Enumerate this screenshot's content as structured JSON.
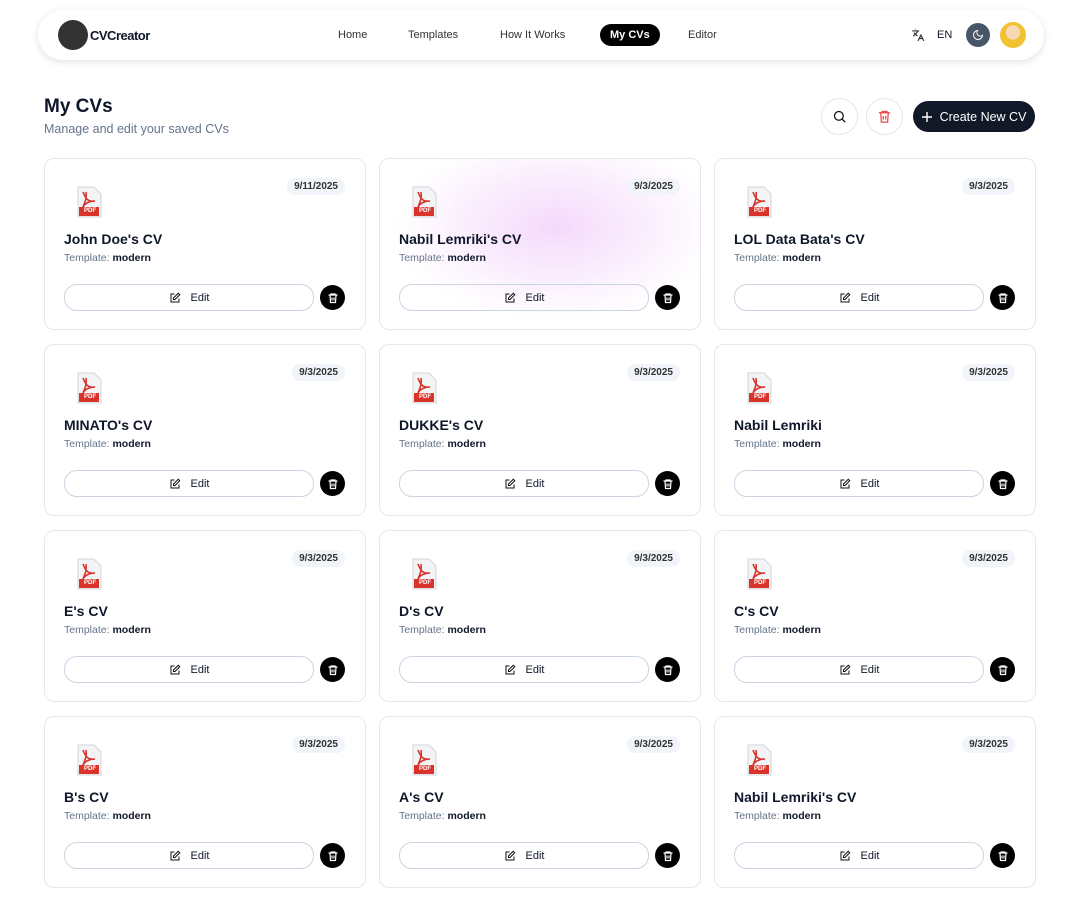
{
  "nav": {
    "logo": "CVCreator",
    "links": [
      "Home",
      "Templates",
      "How It Works",
      "My CVs",
      "Editor"
    ],
    "active_link": 3,
    "language": "EN"
  },
  "header": {
    "title": "My CVs",
    "subtitle": "Manage and edit your saved CVs",
    "create_button": "Create New CV"
  },
  "cv_list": {
    "template_label": "Template:",
    "edit_label": "Edit",
    "icon_label": "PDF",
    "items": [
      {
        "name": "John Doe's CV",
        "date": "9/11/2025",
        "template": "modern"
      },
      {
        "name": "Nabil Lemriki's CV",
        "date": "9/3/2025",
        "template": "modern"
      },
      {
        "name": "LOL Data Bata's CV",
        "date": "9/3/2025",
        "template": "modern"
      },
      {
        "name": "MINATO's CV",
        "date": "9/3/2025",
        "template": "modern"
      },
      {
        "name": "DUKKE's CV",
        "date": "9/3/2025",
        "template": "modern"
      },
      {
        "name": "Nabil Lemriki",
        "date": "9/3/2025",
        "template": "modern"
      },
      {
        "name": "E's CV",
        "date": "9/3/2025",
        "template": "modern"
      },
      {
        "name": "D's CV",
        "date": "9/3/2025",
        "template": "modern"
      },
      {
        "name": "C's CV",
        "date": "9/3/2025",
        "template": "modern"
      },
      {
        "name": "B's CV",
        "date": "9/3/2025",
        "template": "modern"
      },
      {
        "name": "A's CV",
        "date": "9/3/2025",
        "template": "modern"
      },
      {
        "name": "Nabil Lemriki's CV",
        "date": "9/3/2025",
        "template": "modern"
      }
    ]
  }
}
